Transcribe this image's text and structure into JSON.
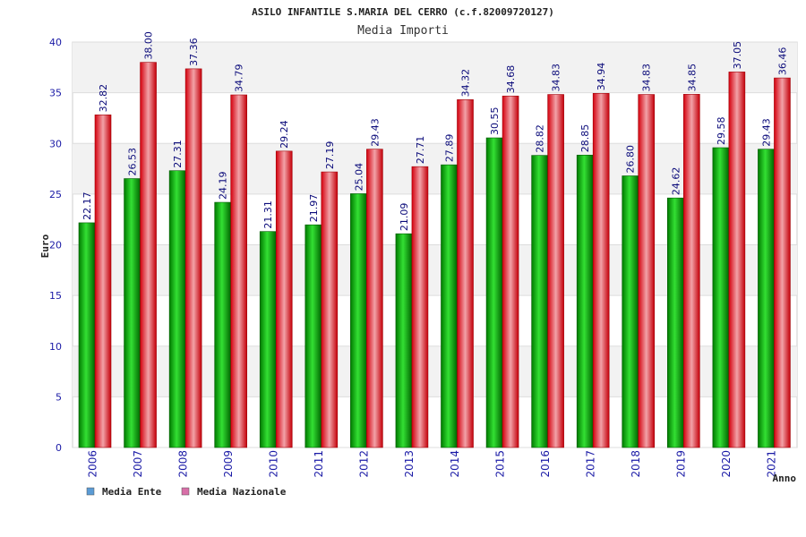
{
  "chart_data": {
    "type": "bar",
    "title": "ASILO INFANTILE S.MARIA DEL CERRO (c.f.82009720127)",
    "subtitle": "Media Importi",
    "xlabel": "Anno",
    "ylabel": "Euro",
    "ylim": [
      0,
      40
    ],
    "yticks": [
      0,
      5,
      10,
      15,
      20,
      25,
      30,
      35,
      40
    ],
    "grid": true,
    "legend_position": "bottom-left",
    "categories": [
      "2006",
      "2007",
      "2008",
      "2009",
      "2010",
      "2011",
      "2012",
      "2013",
      "2014",
      "2015",
      "2016",
      "2017",
      "2018",
      "2019",
      "2020",
      "2021"
    ],
    "series": [
      {
        "name": "Media Ente",
        "bar_color": "#00a400",
        "legend_color": "#5b9bd5",
        "values": [
          22.17,
          26.53,
          27.31,
          24.19,
          21.31,
          21.97,
          25.04,
          21.09,
          27.89,
          30.55,
          28.82,
          28.85,
          26.8,
          24.62,
          29.58,
          29.43
        ],
        "labels": [
          "22.17",
          "26.53",
          "27.31",
          "24.19",
          "21.31",
          "21.97",
          "25.04",
          "21.09",
          "27.89",
          "30.55",
          "28.82",
          "28.85",
          "26.80",
          "24.62",
          "29.58",
          "29.43"
        ]
      },
      {
        "name": "Media Nazionale",
        "bar_color": "#e0141e",
        "legend_color": "#d86fa8",
        "values": [
          32.82,
          38.0,
          37.36,
          34.79,
          29.24,
          27.19,
          29.43,
          27.71,
          34.32,
          34.68,
          34.83,
          34.94,
          34.83,
          34.85,
          37.05,
          36.46
        ],
        "labels": [
          "32.82",
          "38.00",
          "37.36",
          "34.79",
          "29.24",
          "27.19",
          "29.43",
          "27.71",
          "34.32",
          "34.68",
          "34.83",
          "34.94",
          "34.83",
          "34.85",
          "37.05",
          "36.46"
        ]
      }
    ]
  }
}
